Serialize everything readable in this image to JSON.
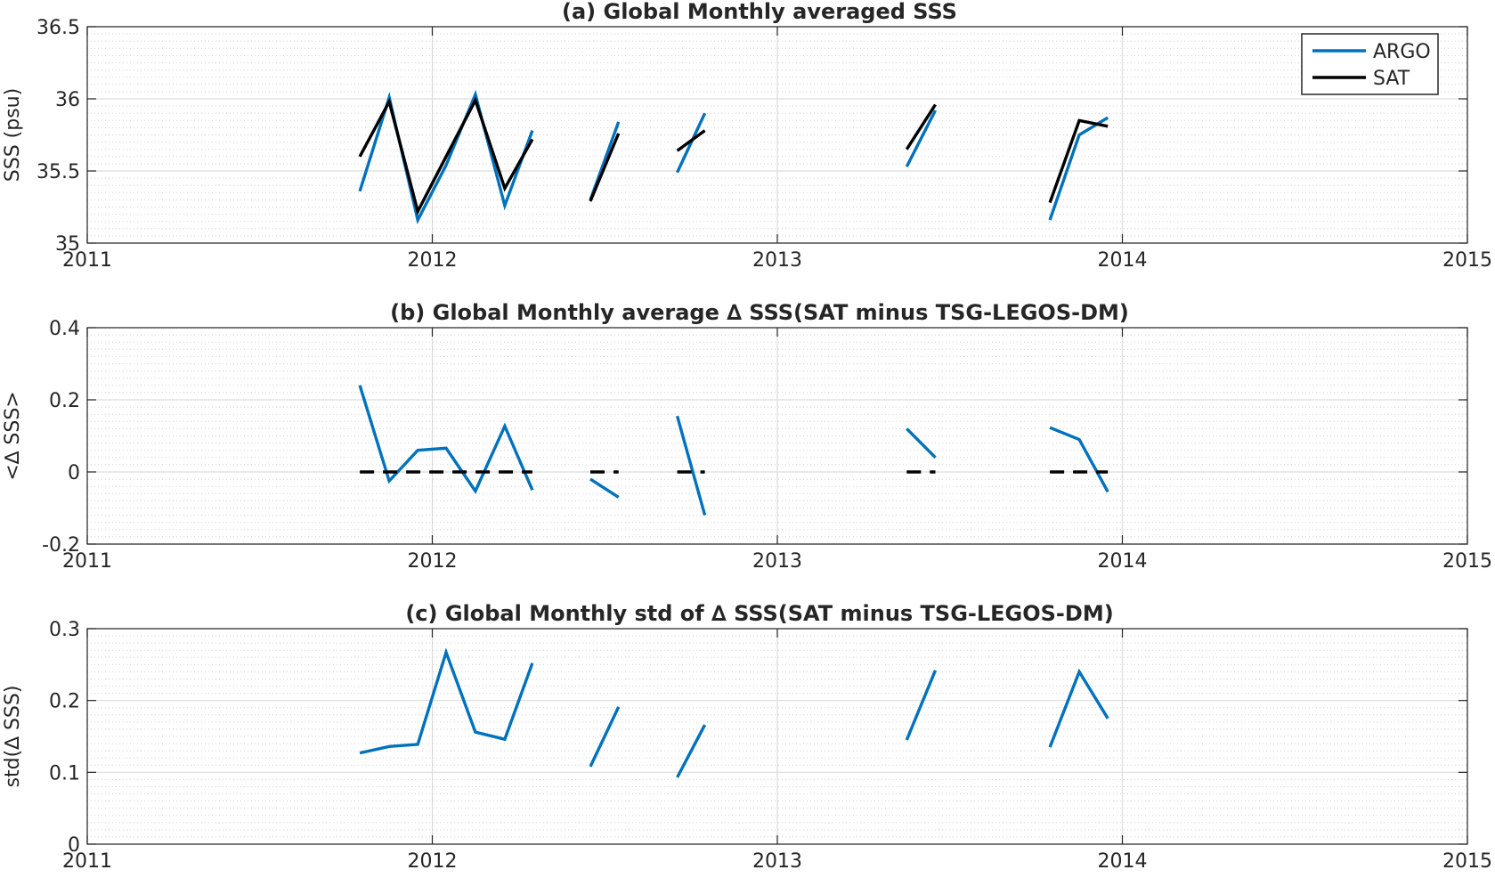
{
  "chart_data": [
    {
      "type": "line",
      "title": "(a) Global Monthly averaged SSS",
      "xlabel": "",
      "ylabel": "SSS (psu)",
      "xlim": [
        2011,
        2015
      ],
      "ylim": [
        35,
        36.5
      ],
      "xticks": [
        "2011",
        "2012",
        "2013",
        "2014",
        "2015"
      ],
      "yticks": [
        "35",
        "35.5",
        "36",
        "36.5"
      ],
      "grid": true,
      "legend": "top-right",
      "series": [
        {
          "name": "ARGO",
          "color": "#0072BD",
          "segments": [
            [
              [
                2011.79,
                35.36
              ],
              [
                2011.875,
                36.01
              ],
              [
                2011.958,
                35.16
              ],
              [
                2012.04,
                35.54
              ],
              [
                2012.125,
                36.03
              ],
              [
                2012.21,
                35.26
              ],
              [
                2012.29,
                35.78
              ]
            ],
            [
              [
                2012.458,
                35.3
              ],
              [
                2012.54,
                35.84
              ]
            ],
            [
              [
                2012.71,
                35.49
              ],
              [
                2012.79,
                35.9
              ]
            ],
            [
              [
                2013.375,
                35.53
              ],
              [
                2013.458,
                35.92
              ]
            ],
            [
              [
                2013.79,
                35.16
              ],
              [
                2013.875,
                35.75
              ],
              [
                2013.958,
                35.87
              ]
            ]
          ]
        },
        {
          "name": "SAT",
          "color": "#000000",
          "segments": [
            [
              [
                2011.79,
                35.6
              ],
              [
                2011.875,
                35.98
              ],
              [
                2011.958,
                35.22
              ],
              [
                2012.04,
                35.6
              ],
              [
                2012.125,
                35.99
              ],
              [
                2012.21,
                35.38
              ],
              [
                2012.29,
                35.72
              ]
            ],
            [
              [
                2012.458,
                35.29
              ],
              [
                2012.54,
                35.76
              ]
            ],
            [
              [
                2012.71,
                35.64
              ],
              [
                2012.79,
                35.78
              ]
            ],
            [
              [
                2013.375,
                35.65
              ],
              [
                2013.458,
                35.96
              ]
            ],
            [
              [
                2013.79,
                35.28
              ],
              [
                2013.875,
                35.85
              ],
              [
                2013.958,
                35.81
              ]
            ]
          ]
        }
      ]
    },
    {
      "type": "line",
      "title": "(b) Global Monthly average ∆ SSS(SAT minus TSG-LEGOS-DM)",
      "xlabel": "",
      "ylabel": "<∆ SSS>",
      "xlim": [
        2011,
        2015
      ],
      "ylim": [
        -0.2,
        0.4
      ],
      "xticks": [
        "2011",
        "2012",
        "2013",
        "2014",
        "2015"
      ],
      "yticks": [
        "-0.2",
        "0",
        "0.2",
        "0.4"
      ],
      "grid": true,
      "series": [
        {
          "color": "#0072BD",
          "segments": [
            [
              [
                2011.79,
                0.24
              ],
              [
                2011.875,
                -0.025
              ],
              [
                2011.958,
                0.06
              ],
              [
                2012.04,
                0.066
              ],
              [
                2012.125,
                -0.053
              ],
              [
                2012.21,
                0.127
              ],
              [
                2012.29,
                -0.05
              ]
            ],
            [
              [
                2012.458,
                -0.02
              ],
              [
                2012.54,
                -0.07
              ]
            ],
            [
              [
                2012.71,
                0.155
              ],
              [
                2012.79,
                -0.12
              ]
            ],
            [
              [
                2013.375,
                0.12
              ],
              [
                2013.458,
                0.04
              ]
            ],
            [
              [
                2013.79,
                0.123
              ],
              [
                2013.875,
                0.09
              ],
              [
                2013.958,
                -0.055
              ]
            ]
          ]
        },
        {
          "color": "#000000",
          "dashed": true,
          "segments": [
            [
              [
                2011.79,
                0
              ],
              [
                2012.29,
                0
              ]
            ],
            [
              [
                2012.458,
                0
              ],
              [
                2012.54,
                0
              ]
            ],
            [
              [
                2012.71,
                0
              ],
              [
                2012.79,
                0
              ]
            ],
            [
              [
                2013.375,
                0
              ],
              [
                2013.458,
                0
              ]
            ],
            [
              [
                2013.79,
                0
              ],
              [
                2013.958,
                0
              ]
            ]
          ]
        }
      ]
    },
    {
      "type": "line",
      "title": "(c) Global Monthly std of ∆ SSS(SAT minus TSG-LEGOS-DM)",
      "xlabel": "",
      "ylabel": "std(∆ SSS)",
      "xlim": [
        2011,
        2015
      ],
      "ylim": [
        0,
        0.3
      ],
      "xticks": [
        "2011",
        "2012",
        "2013",
        "2014",
        "2015"
      ],
      "yticks": [
        "0",
        "0.1",
        "0.2",
        "0.3"
      ],
      "grid": true,
      "series": [
        {
          "color": "#0072BD",
          "segments": [
            [
              [
                2011.79,
                0.127
              ],
              [
                2011.875,
                0.136
              ],
              [
                2011.958,
                0.139
              ],
              [
                2012.04,
                0.267
              ],
              [
                2012.125,
                0.156
              ],
              [
                2012.21,
                0.146
              ],
              [
                2012.29,
                0.252
              ]
            ],
            [
              [
                2012.458,
                0.108
              ],
              [
                2012.54,
                0.191
              ]
            ],
            [
              [
                2012.71,
                0.093
              ],
              [
                2012.79,
                0.166
              ]
            ],
            [
              [
                2013.375,
                0.145
              ],
              [
                2013.458,
                0.242
              ]
            ],
            [
              [
                2013.79,
                0.135
              ],
              [
                2013.875,
                0.24
              ],
              [
                2013.958,
                0.175
              ]
            ]
          ]
        }
      ]
    }
  ]
}
